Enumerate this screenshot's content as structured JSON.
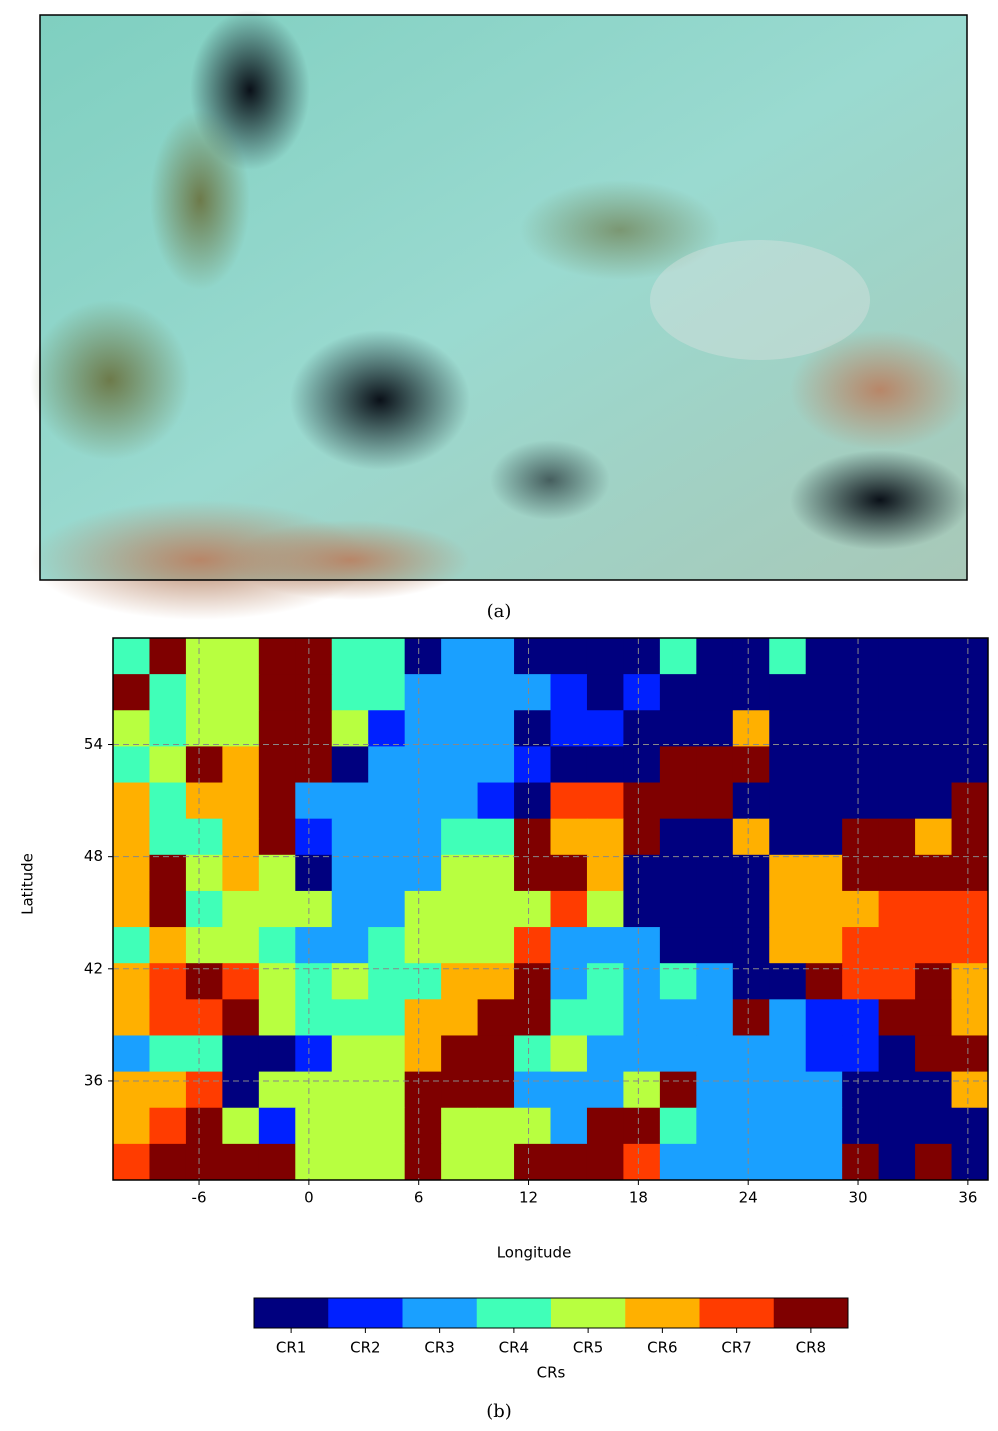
{
  "panel_a": {
    "caption": "(a)"
  },
  "chart_data": {
    "type": "heatmap",
    "xlabel": "Longitude",
    "ylabel": "Latitude",
    "xlim": [
      -10.7,
      37.1
    ],
    "ylim": [
      30.7,
      59.7
    ],
    "xticks": [
      -6,
      0,
      6,
      12,
      18,
      24,
      30,
      36
    ],
    "yticks": [
      36,
      42,
      48,
      54
    ],
    "grid": true,
    "classes": [
      "CR1",
      "CR2",
      "CR3",
      "CR4",
      "CR5",
      "CR6",
      "CR7",
      "CR8"
    ],
    "colors": [
      "#00007f",
      "#0020ff",
      "#1aa0ff",
      "#40ffb8",
      "#b8ff40",
      "#ffb000",
      "#ff3c00",
      "#7f0000"
    ],
    "colorbar_title": "CRs",
    "cells": [
      [
        4,
        8,
        5,
        5,
        8,
        8,
        4,
        4,
        1,
        3,
        3,
        1,
        1,
        1,
        1,
        4,
        1,
        1,
        4,
        1,
        1,
        1,
        1,
        1
      ],
      [
        8,
        4,
        5,
        5,
        8,
        8,
        4,
        4,
        3,
        3,
        3,
        3,
        2,
        1,
        2,
        1,
        1,
        1,
        1,
        1,
        1,
        1,
        1,
        1
      ],
      [
        5,
        4,
        5,
        5,
        8,
        8,
        5,
        2,
        3,
        3,
        3,
        1,
        2,
        2,
        1,
        1,
        1,
        6,
        1,
        1,
        1,
        1,
        1,
        1
      ],
      [
        4,
        5,
        8,
        6,
        8,
        8,
        1,
        3,
        3,
        3,
        3,
        2,
        1,
        1,
        1,
        8,
        8,
        8,
        1,
        1,
        1,
        1,
        1,
        1
      ],
      [
        6,
        4,
        6,
        6,
        8,
        3,
        3,
        3,
        3,
        3,
        2,
        1,
        7,
        7,
        8,
        8,
        8,
        1,
        1,
        1,
        1,
        1,
        1,
        8
      ],
      [
        6,
        4,
        4,
        6,
        8,
        2,
        3,
        3,
        3,
        4,
        4,
        8,
        6,
        6,
        8,
        1,
        1,
        6,
        1,
        1,
        8,
        8,
        6,
        8
      ],
      [
        6,
        8,
        5,
        6,
        5,
        1,
        3,
        3,
        3,
        5,
        5,
        8,
        8,
        6,
        1,
        1,
        1,
        1,
        6,
        6,
        8,
        8,
        8,
        8
      ],
      [
        6,
        8,
        4,
        5,
        5,
        5,
        3,
        3,
        5,
        5,
        5,
        5,
        7,
        5,
        1,
        1,
        1,
        1,
        6,
        6,
        6,
        7,
        7,
        7
      ],
      [
        4,
        6,
        5,
        5,
        4,
        3,
        3,
        4,
        5,
        5,
        5,
        7,
        3,
        3,
        3,
        1,
        1,
        1,
        6,
        6,
        7,
        7,
        7,
        7
      ],
      [
        6,
        7,
        8,
        7,
        5,
        4,
        5,
        4,
        4,
        6,
        6,
        8,
        3,
        4,
        3,
        4,
        3,
        1,
        1,
        8,
        7,
        7,
        8,
        6
      ],
      [
        6,
        7,
        7,
        8,
        5,
        4,
        4,
        4,
        6,
        6,
        8,
        8,
        4,
        4,
        3,
        3,
        3,
        8,
        3,
        2,
        2,
        8,
        8,
        6
      ],
      [
        3,
        4,
        4,
        1,
        1,
        2,
        5,
        5,
        6,
        8,
        8,
        4,
        5,
        3,
        3,
        3,
        3,
        3,
        3,
        2,
        2,
        1,
        8,
        8
      ],
      [
        6,
        6,
        7,
        1,
        5,
        5,
        5,
        5,
        8,
        8,
        8,
        3,
        3,
        3,
        5,
        8,
        3,
        3,
        3,
        3,
        1,
        1,
        1,
        6
      ],
      [
        6,
        7,
        8,
        5,
        2,
        5,
        5,
        5,
        8,
        5,
        5,
        5,
        3,
        8,
        8,
        4,
        3,
        3,
        3,
        3,
        1,
        1,
        1,
        1
      ],
      [
        7,
        8,
        8,
        8,
        8,
        5,
        5,
        5,
        8,
        5,
        5,
        8,
        8,
        8,
        7,
        3,
        3,
        3,
        3,
        3,
        8,
        1,
        8,
        1
      ]
    ],
    "caption": "(b)"
  }
}
